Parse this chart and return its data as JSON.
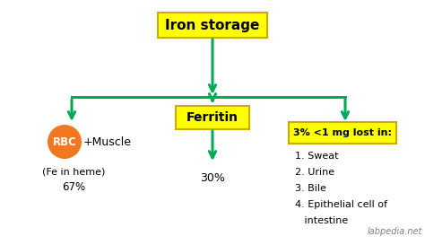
{
  "bg_color": "#ffffff",
  "arrow_color": "#00aa55",
  "box_fill": "#ffff00",
  "box_edge": "#ccaa00",
  "title": "Iron storage",
  "ferritin_label": "Ferritin",
  "ferritin_pct": "30%",
  "rbc_label": "RBC",
  "rbc_sub": "+Muscle",
  "rbc_note1": "(Fe in heme)",
  "rbc_note2": "67%",
  "rbc_circle_color": "#f07820",
  "rbc_text_color": "#ffffff",
  "lost_label": "3% <1 mg lost in:",
  "lost_items": [
    "1. Sweat",
    "2. Urine",
    "3. Bile",
    "4. Epithelial cell of",
    "   intestine"
  ],
  "watermark": "labpedia.net"
}
